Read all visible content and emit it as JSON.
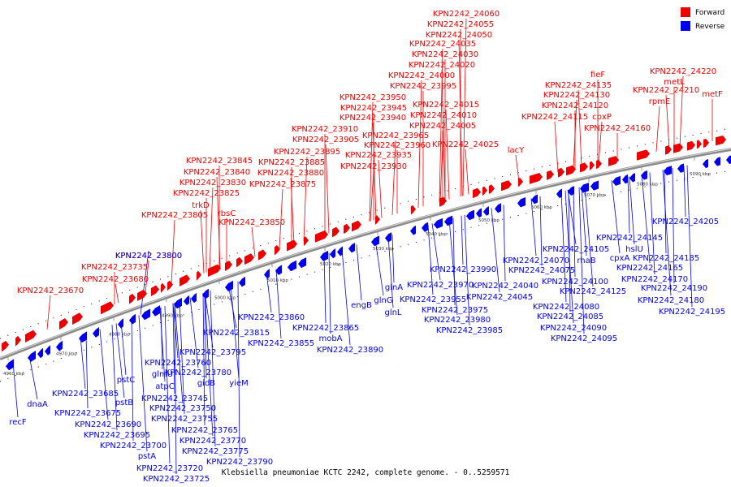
{
  "caption": "Klebsiella pneumoniae KCTC 2242, complete genome. - 0..5259571",
  "legend": [
    {
      "label": "Forward",
      "color": "#ee0000"
    },
    {
      "label": "Reverse",
      "color": "#0000ee"
    }
  ],
  "colors": {
    "forward": "#ee0000",
    "reverse": "#0000ee",
    "axis": "#888888",
    "leader": "#ee0000",
    "leader_reverse": "#0000ee"
  },
  "scale_unit": "kbp",
  "ticks": [
    4960,
    4970,
    4980,
    4990,
    5000,
    5010,
    5020,
    5030,
    5040,
    5050,
    5060,
    5070,
    5080,
    5090
  ],
  "forward_labels": [
    "KPN2242_24060",
    "KPN2242_24055",
    "KPN2242_24050",
    "KPN2242_24035",
    "KPN2242_24030",
    "KPN2242_24020",
    "KPN2242_24000",
    "KPN2242_23995",
    "KPN2242_24015",
    "KPN2242_24010",
    "KPN2242_24005",
    "KPN2242_24025",
    "KPN2242_23950",
    "KPN2242_23945",
    "KPN2242_23940",
    "KPN2242_23965",
    "KPN2242_23960",
    "KPN2242_23935",
    "KPN2242_23930",
    "KPN2242_23910",
    "KPN2242_23905",
    "KPN2242_23895",
    "KPN2242_23885",
    "KPN2242_23880",
    "KPN2242_23875",
    "KPN2242_23845",
    "KPN2242_23840",
    "KPN2242_23830",
    "KPN2242_23825",
    "trkD",
    "KPN2242_23805",
    "rbsC",
    "KPN2242_23850",
    "KPN2242_23800",
    "KPN2242_23735",
    "KPN2242_23680",
    "KPN2242_23670",
    "fieF",
    "KPN2242_24135",
    "KPN2242_24130",
    "KPN2242_24120",
    "KPN2242_24115",
    "cpxP",
    "KPN2242_24160",
    "lacY",
    "KPN2242_24220",
    "metL",
    "KPN2242_24210",
    "rpmE",
    "metF"
  ],
  "reverse_labels": [
    "KPN2242_23800",
    "KPN2242_23860",
    "KPN2242_23865",
    "KPN2242_23815",
    "KPN2242_23855",
    "mobA",
    "KPN2242_23890",
    "engB",
    "glnA",
    "glnG",
    "glnL",
    "KPN2242_23990",
    "KPN2242_23970",
    "KPN2242_23955",
    "KPN2242_23975",
    "KPN2242_23980",
    "KPN2242_23985",
    "KPN2242_24040",
    "KPN2242_24045",
    "KPN2242_24070",
    "KPN2242_24075",
    "KPN2242_24105",
    "rhaB",
    "KPN2242_24100",
    "KPN2242_24125",
    "KPN2242_24080",
    "KPN2242_24085",
    "KPN2242_24090",
    "KPN2242_24095",
    "KPN2242_24145",
    "cpxA",
    "hslU",
    "KPN2242_24185",
    "KPN2242_24165",
    "KPN2242_24170",
    "KPN2242_24190",
    "KPN2242_24180",
    "KPN2242_24195",
    "KPN2242_24205",
    "KPN2242_23795",
    "KPN2242_23760",
    "glmU",
    "KPN2242_23780",
    "atpC",
    "gidB",
    "yieM",
    "pstC",
    "KPN2242_23745",
    "KPN2242_23750",
    "KPN2242_23755",
    "KPN2242_23765",
    "KPN2242_23770",
    "KPN2242_23775",
    "KPN2242_23790",
    "pstB",
    "KPN2242_23685",
    "KPN2242_23675",
    "KPN2242_23690",
    "KPN2242_23695",
    "KPN2242_23700",
    "pstA",
    "KPN2242_23720",
    "KPN2242_23725",
    "dnaA",
    "recF"
  ]
}
